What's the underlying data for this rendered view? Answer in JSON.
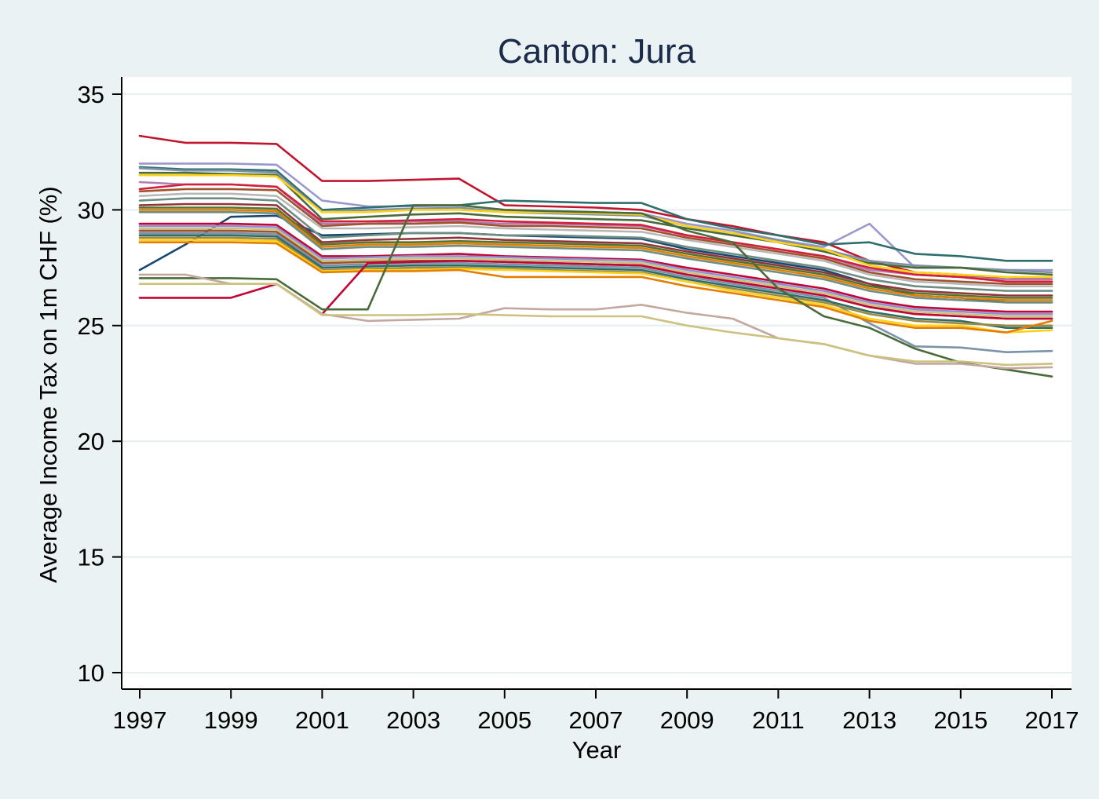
{
  "chart_data": {
    "type": "line",
    "title": "Canton: Jura",
    "xlabel": "Year",
    "ylabel": "Average Income Tax on 1m CHF (%)",
    "xlim": [
      1997,
      2017
    ],
    "ylim": [
      10,
      35
    ],
    "xticks": [
      "1997",
      "1999",
      "2001",
      "2003",
      "2005",
      "2007",
      "2009",
      "2011",
      "2013",
      "2015",
      "2017"
    ],
    "yticks": [
      "10",
      "15",
      "20",
      "25",
      "30",
      "35"
    ],
    "grid": "horizontal",
    "legend": "none",
    "x": [
      1997,
      1998,
      1999,
      2000,
      2001,
      2002,
      2003,
      2004,
      2005,
      2006,
      2007,
      2008,
      2009,
      2010,
      2011,
      2012,
      2013,
      2014,
      2015,
      2016,
      2017
    ],
    "series": [
      {
        "color": "#c3142d",
        "values": [
          33.2,
          32.9,
          32.9,
          32.85,
          31.25,
          31.25,
          31.3,
          31.35,
          30.2,
          30.15,
          30.1,
          30.0,
          29.6,
          29.3,
          28.9,
          28.6,
          27.8,
          27.3,
          27.2,
          27.0,
          27.1
        ]
      },
      {
        "color": "#9a97cf",
        "values": [
          32.0,
          32.0,
          32.0,
          31.95,
          30.4,
          30.15,
          30.15,
          30.2,
          30.0,
          29.95,
          29.9,
          29.85,
          29.4,
          29.1,
          28.7,
          28.4,
          29.4,
          27.5,
          27.5,
          27.4,
          27.4
        ]
      },
      {
        "color": "#2e6e6c",
        "values": [
          31.85,
          31.75,
          31.75,
          31.7,
          30.0,
          30.1,
          30.2,
          30.2,
          30.4,
          30.35,
          30.3,
          30.3,
          29.6,
          29.2,
          28.9,
          28.5,
          28.6,
          28.1,
          28.0,
          27.8,
          27.8
        ]
      },
      {
        "color": "#7f8fa6",
        "values": [
          31.8,
          31.7,
          31.7,
          31.6,
          29.9,
          30.0,
          30.05,
          30.1,
          29.9,
          29.85,
          29.8,
          29.75,
          29.3,
          29.0,
          28.7,
          28.3,
          27.8,
          27.6,
          27.5,
          27.4,
          27.3
        ]
      },
      {
        "color": "#4a6b3a",
        "values": [
          31.6,
          31.6,
          31.55,
          31.5,
          29.6,
          29.7,
          29.8,
          29.85,
          29.7,
          29.65,
          29.6,
          29.55,
          29.2,
          28.9,
          28.6,
          28.2,
          27.7,
          27.5,
          27.5,
          27.3,
          27.2
        ]
      },
      {
        "color": "#ffd21a",
        "values": [
          31.5,
          31.5,
          31.5,
          31.45,
          29.9,
          29.9,
          30.0,
          30.0,
          29.9,
          29.9,
          29.85,
          29.8,
          29.3,
          29.0,
          28.6,
          28.3,
          27.6,
          27.3,
          27.2,
          27.1,
          27.1
        ]
      },
      {
        "color": "#b07db5",
        "values": [
          31.2,
          31.1,
          31.1,
          31.0,
          29.4,
          29.4,
          29.5,
          29.5,
          29.4,
          29.4,
          29.35,
          29.3,
          28.9,
          28.6,
          28.3,
          28.0,
          27.4,
          27.2,
          27.1,
          27.0,
          27.0
        ]
      },
      {
        "color": "#d11f3c",
        "values": [
          30.9,
          31.1,
          31.1,
          31.0,
          29.5,
          29.5,
          29.55,
          29.6,
          29.5,
          29.45,
          29.4,
          29.35,
          28.9,
          28.6,
          28.3,
          28.0,
          27.5,
          27.2,
          27.1,
          26.9,
          26.9
        ]
      },
      {
        "color": "#a0522d",
        "values": [
          30.8,
          30.9,
          30.9,
          30.85,
          29.3,
          29.4,
          29.4,
          29.45,
          29.3,
          29.3,
          29.25,
          29.2,
          28.8,
          28.5,
          28.2,
          27.9,
          27.3,
          27.0,
          26.9,
          26.8,
          26.8
        ]
      },
      {
        "color": "#b7b7b7",
        "values": [
          30.6,
          30.7,
          30.7,
          30.6,
          29.2,
          29.2,
          29.25,
          29.3,
          29.2,
          29.15,
          29.1,
          29.05,
          28.7,
          28.4,
          28.1,
          27.8,
          27.2,
          26.9,
          26.8,
          26.7,
          26.7
        ]
      },
      {
        "color": "#1a476f",
        "values": [
          27.4,
          28.5,
          29.7,
          29.75,
          28.9,
          28.95,
          29.0,
          29.0,
          28.9,
          28.85,
          28.8,
          28.75,
          28.3,
          28.0,
          27.7,
          27.4,
          26.8,
          26.3,
          26.2,
          26.0,
          26.0
        ]
      },
      {
        "color": "#6e8e84",
        "values": [
          30.4,
          30.5,
          30.5,
          30.4,
          28.8,
          28.9,
          29.0,
          29.0,
          28.9,
          28.9,
          28.85,
          28.8,
          28.4,
          28.1,
          27.8,
          27.5,
          27.0,
          26.7,
          26.6,
          26.5,
          26.5
        ]
      },
      {
        "color": "#90353b",
        "values": [
          30.2,
          30.25,
          30.25,
          30.2,
          28.6,
          28.7,
          28.75,
          28.8,
          28.7,
          28.65,
          28.6,
          28.55,
          28.2,
          27.9,
          27.6,
          27.3,
          26.8,
          26.5,
          26.4,
          26.3,
          26.3
        ]
      },
      {
        "color": "#55752f",
        "values": [
          30.1,
          30.1,
          30.1,
          30.05,
          28.5,
          28.6,
          28.6,
          28.65,
          28.6,
          28.55,
          28.5,
          28.45,
          28.1,
          27.8,
          27.5,
          27.2,
          26.7,
          26.4,
          26.3,
          26.2,
          26.2
        ]
      },
      {
        "color": "#e37e00",
        "values": [
          30.0,
          30.0,
          30.0,
          29.95,
          28.4,
          28.5,
          28.5,
          28.55,
          28.5,
          28.45,
          28.4,
          28.35,
          28.0,
          27.7,
          27.4,
          27.1,
          26.6,
          26.3,
          26.2,
          26.1,
          26.1
        ]
      },
      {
        "color": "#6e8e84",
        "values": [
          29.9,
          29.9,
          29.9,
          29.85,
          28.3,
          28.4,
          28.4,
          28.45,
          28.4,
          28.35,
          28.3,
          28.25,
          27.9,
          27.6,
          27.3,
          27.0,
          26.5,
          26.2,
          26.1,
          26.0,
          26.0
        ]
      },
      {
        "color": "#c10534",
        "values": [
          29.4,
          29.4,
          29.4,
          29.35,
          28.0,
          28.0,
          28.05,
          28.1,
          28.0,
          27.95,
          27.9,
          27.85,
          27.5,
          27.2,
          26.9,
          26.6,
          26.1,
          25.8,
          25.7,
          25.6,
          25.6
        ]
      },
      {
        "color": "#938dd2",
        "values": [
          29.3,
          29.3,
          29.3,
          29.25,
          27.9,
          27.95,
          28.0,
          28.0,
          27.95,
          27.9,
          27.85,
          27.8,
          27.4,
          27.1,
          26.8,
          26.5,
          26.0,
          25.7,
          25.6,
          25.5,
          25.5
        ]
      },
      {
        "color": "#cac27e",
        "values": [
          29.2,
          29.2,
          29.2,
          29.15,
          27.8,
          27.85,
          27.9,
          27.9,
          27.85,
          27.8,
          27.75,
          27.7,
          27.3,
          27.0,
          26.7,
          26.4,
          25.9,
          25.6,
          25.5,
          25.4,
          25.4
        ]
      },
      {
        "color": "#a0522d",
        "values": [
          29.1,
          29.1,
          29.1,
          29.05,
          27.7,
          27.75,
          27.8,
          27.8,
          27.75,
          27.7,
          27.65,
          27.6,
          27.2,
          26.9,
          26.6,
          26.3,
          25.8,
          25.5,
          25.4,
          25.3,
          25.3
        ]
      },
      {
        "color": "#7b92a8",
        "values": [
          29.0,
          29.0,
          29.0,
          28.95,
          27.6,
          27.65,
          27.7,
          27.7,
          27.65,
          27.6,
          27.55,
          27.5,
          27.1,
          26.8,
          26.5,
          26.2,
          25.1,
          24.1,
          24.05,
          23.85,
          23.9
        ]
      },
      {
        "color": "#2d6d66",
        "values": [
          28.9,
          28.9,
          28.9,
          28.85,
          27.5,
          27.55,
          27.6,
          27.6,
          27.55,
          27.5,
          27.45,
          27.4,
          27.0,
          26.7,
          26.4,
          26.1,
          25.6,
          25.3,
          25.2,
          24.9,
          24.9
        ]
      },
      {
        "color": "#9c8847",
        "values": [
          28.8,
          28.8,
          28.8,
          28.75,
          27.4,
          27.45,
          27.5,
          27.5,
          27.45,
          27.4,
          27.35,
          27.3,
          26.9,
          26.6,
          26.3,
          26.0,
          25.5,
          25.2,
          25.1,
          25.0,
          25.0
        ]
      },
      {
        "color": "#ffd21a",
        "values": [
          28.7,
          28.7,
          28.7,
          28.65,
          27.35,
          27.4,
          27.4,
          27.45,
          27.4,
          27.35,
          27.3,
          27.25,
          26.9,
          26.5,
          26.2,
          25.9,
          25.3,
          25.0,
          25.0,
          24.7,
          24.8
        ]
      },
      {
        "color": "#e37e00",
        "values": [
          28.6,
          28.6,
          28.6,
          28.55,
          27.3,
          27.35,
          27.35,
          27.4,
          27.1,
          27.1,
          27.1,
          27.1,
          26.7,
          26.4,
          26.1,
          25.8,
          25.2,
          24.9,
          24.9,
          24.7,
          25.2
        ]
      },
      {
        "color": "#c10534",
        "values": [
          26.2,
          26.2,
          26.2,
          26.8,
          25.5,
          27.7,
          27.75,
          27.8,
          27.75,
          27.7,
          27.65,
          27.6,
          27.2,
          26.9,
          26.6,
          26.3,
          25.8,
          25.5,
          25.4,
          25.3,
          25.3
        ]
      },
      {
        "color": "#4a6b3a",
        "values": [
          27.05,
          27.05,
          27.05,
          27.0,
          25.7,
          25.7,
          30.2,
          30.2,
          30.0,
          29.95,
          29.9,
          29.85,
          29.1,
          28.6,
          26.6,
          25.4,
          24.9,
          24.0,
          23.4,
          23.1,
          22.8
        ]
      },
      {
        "color": "#c4a8a0",
        "values": [
          27.2,
          27.2,
          26.8,
          26.8,
          25.5,
          25.2,
          25.25,
          25.3,
          25.75,
          25.7,
          25.7,
          25.9,
          25.55,
          25.3,
          24.45,
          24.2,
          23.7,
          23.35,
          23.35,
          23.15,
          23.2
        ]
      },
      {
        "color": "#cac27e",
        "values": [
          26.8,
          26.8,
          26.8,
          26.8,
          25.45,
          25.45,
          25.45,
          25.5,
          25.45,
          25.4,
          25.4,
          25.4,
          25.0,
          24.7,
          24.45,
          24.2,
          23.7,
          23.45,
          23.45,
          23.3,
          23.35
        ]
      }
    ]
  }
}
